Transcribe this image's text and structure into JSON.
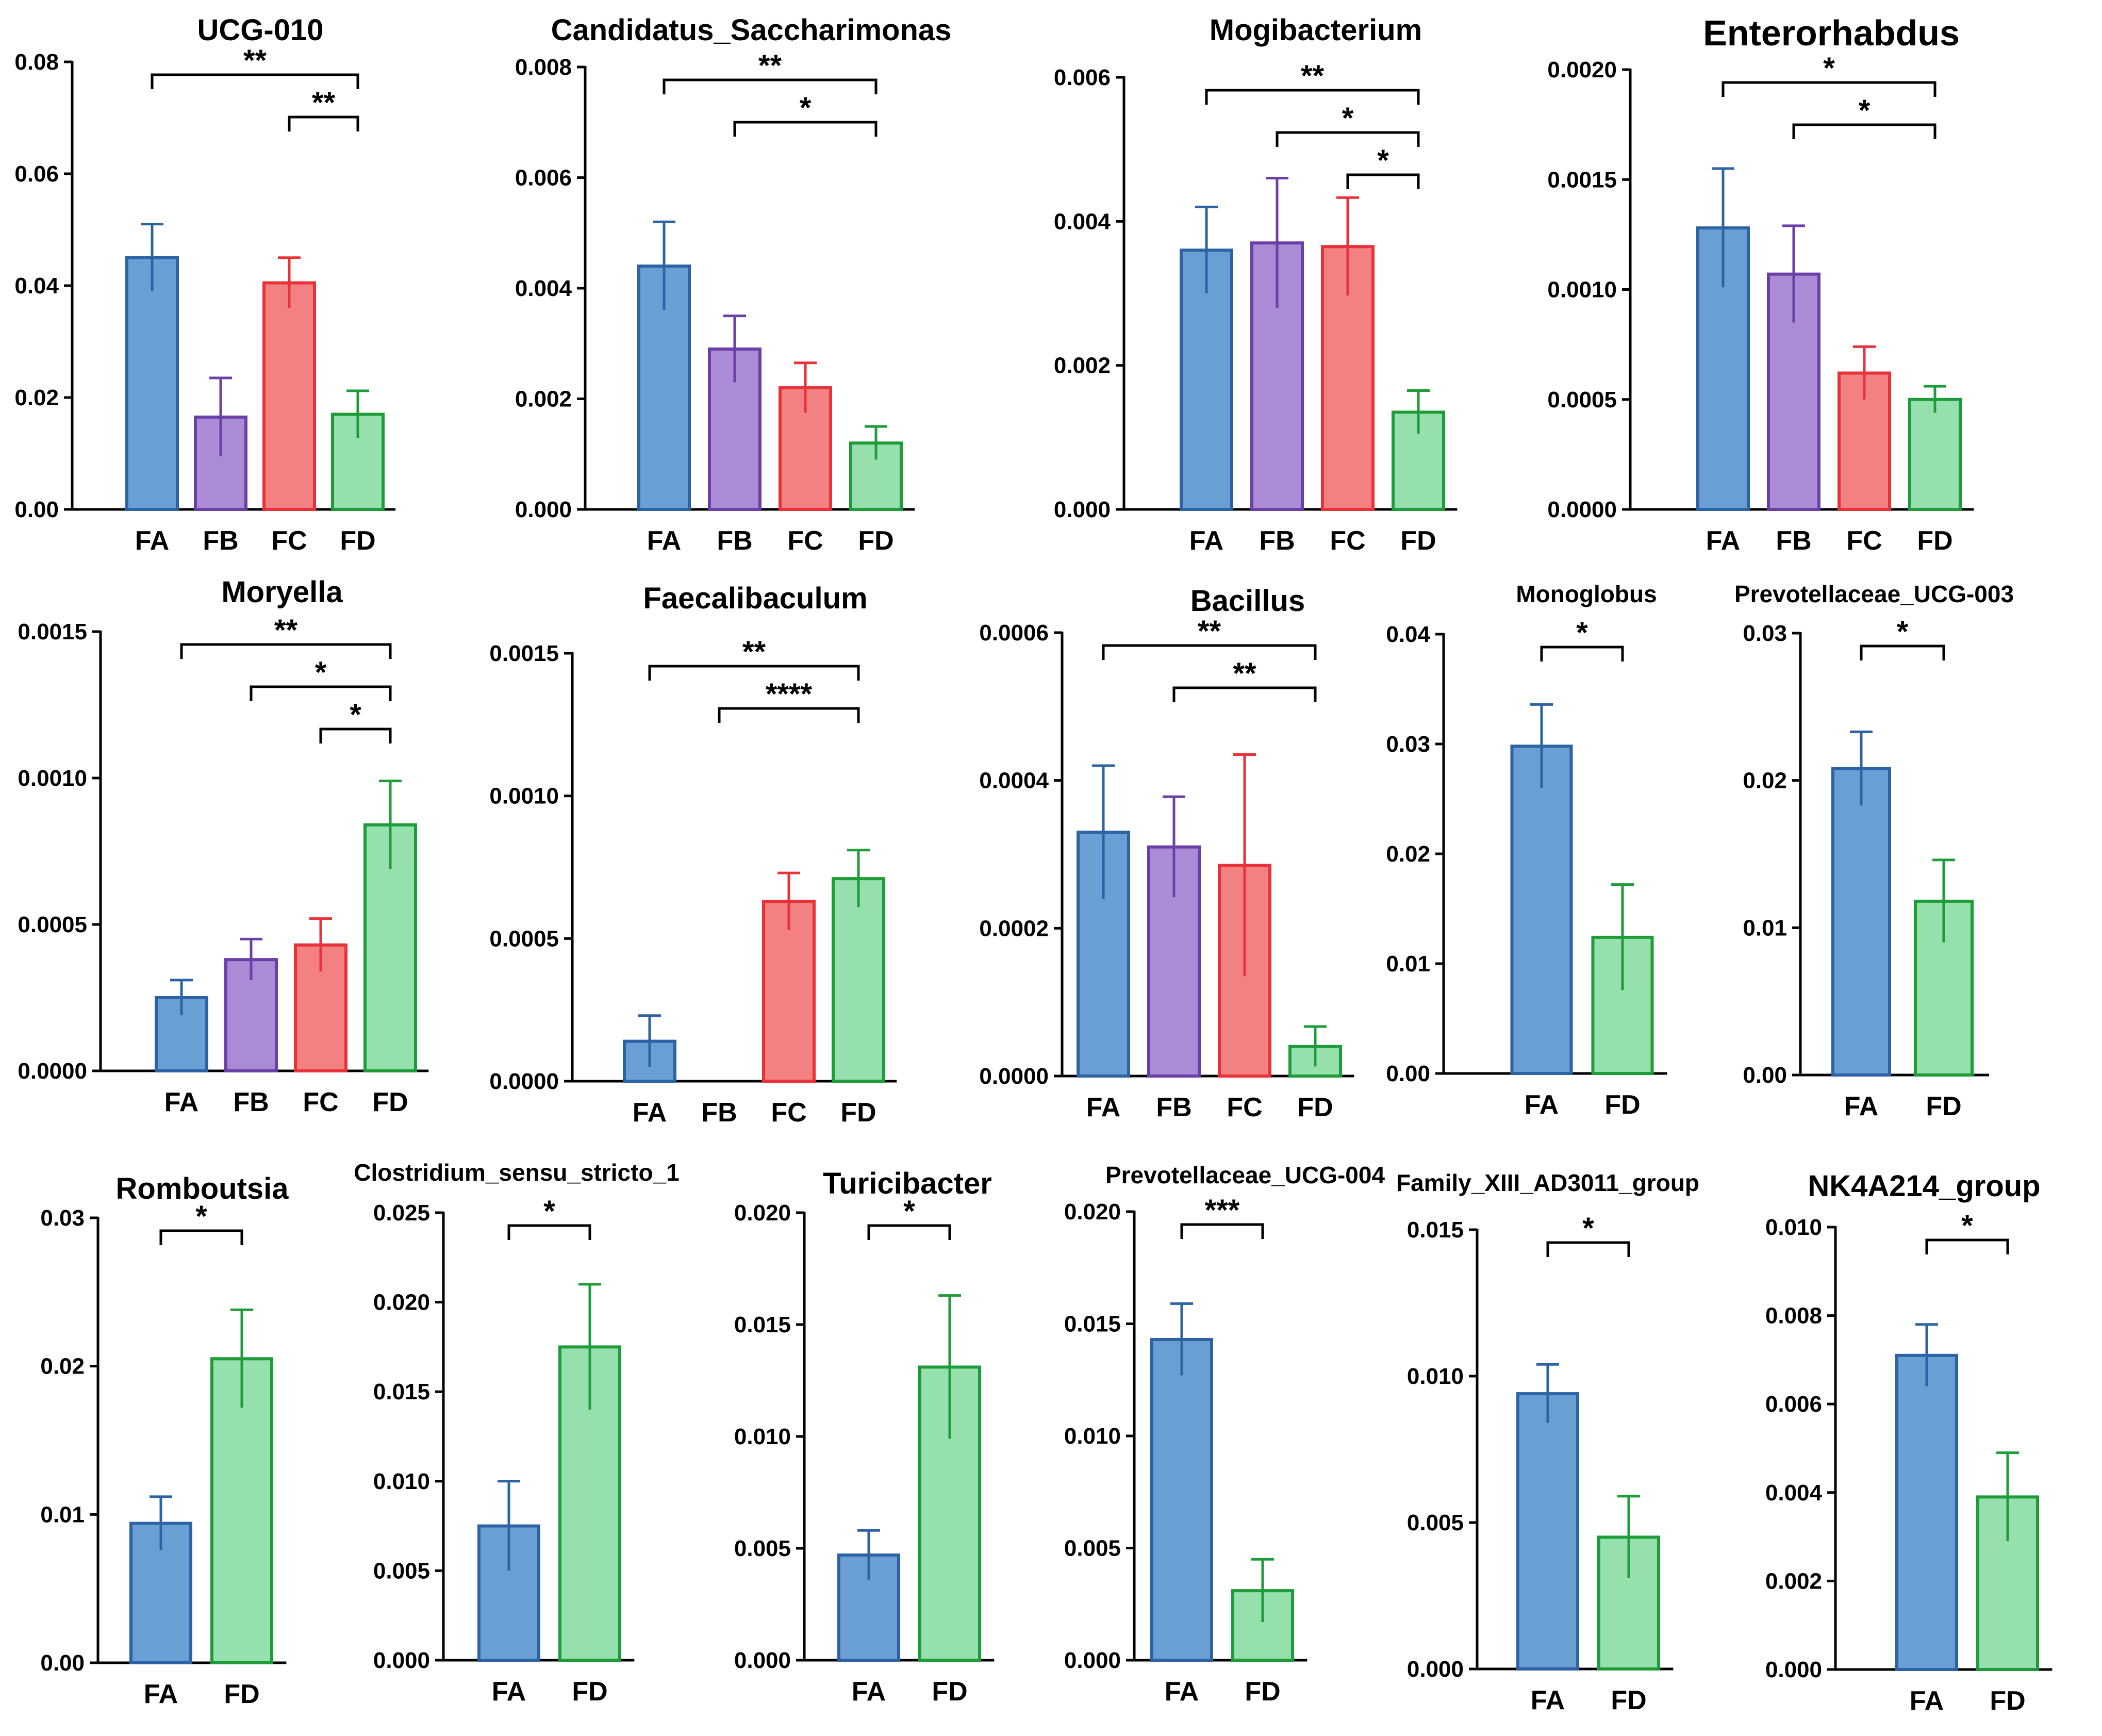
{
  "colors": {
    "FA": {
      "fill": "#6a9fd6",
      "stroke": "#2e63a3"
    },
    "FB": {
      "fill": "#a98bd6",
      "stroke": "#6a3fa6"
    },
    "FC": {
      "fill": "#f38181",
      "stroke": "#e8323a"
    },
    "FD": {
      "fill": "#95e0ad",
      "stroke": "#1f9c3a"
    }
  },
  "chart_data": [
    {
      "type": "bar",
      "title": "UCG-010",
      "categories": [
        "FA",
        "FB",
        "FC",
        "FD"
      ],
      "values": [
        0.045,
        0.0165,
        0.0405,
        0.017
      ],
      "errors": [
        0.006,
        0.007,
        0.0045,
        0.0042
      ],
      "ylim": [
        0,
        0.08
      ],
      "yticks": [
        "0.00",
        "0.02",
        "0.04",
        "0.06",
        "0.08"
      ],
      "significance": [
        {
          "from": "FA",
          "to": "FD",
          "label": "**"
        },
        {
          "from": "FC",
          "to": "FD",
          "label": "**"
        }
      ]
    },
    {
      "type": "bar",
      "title": "Candidatus_Saccharimonas",
      "categories": [
        "FA",
        "FB",
        "FC",
        "FD"
      ],
      "values": [
        0.0044,
        0.0029,
        0.0022,
        0.0012
      ],
      "errors": [
        0.0008,
        0.0006,
        0.00045,
        0.0003
      ],
      "ylim": [
        0,
        0.008
      ],
      "yticks": [
        "0.000",
        "0.002",
        "0.004",
        "0.006",
        "0.008"
      ],
      "significance": [
        {
          "from": "FA",
          "to": "FD",
          "label": "**"
        },
        {
          "from": "FB",
          "to": "FD",
          "label": "*"
        }
      ]
    },
    {
      "type": "bar",
      "title": "Mogibacterium",
      "categories": [
        "FA",
        "FB",
        "FC",
        "FD"
      ],
      "values": [
        0.0036,
        0.0037,
        0.00365,
        0.00135
      ],
      "errors": [
        0.0006,
        0.0009,
        0.00068,
        0.0003
      ],
      "ylim": [
        0,
        0.006
      ],
      "yticks": [
        "0.000",
        "0.002",
        "0.004",
        "0.006"
      ],
      "significance": [
        {
          "from": "FA",
          "to": "FD",
          "label": "**"
        },
        {
          "from": "FB",
          "to": "FD",
          "label": "*"
        },
        {
          "from": "FC",
          "to": "FD",
          "label": "*"
        }
      ]
    },
    {
      "type": "bar",
      "title": "Enterorhabdus",
      "categories": [
        "FA",
        "FB",
        "FC",
        "FD"
      ],
      "values": [
        0.00128,
        0.00107,
        0.00062,
        0.0005
      ],
      "errors": [
        0.00027,
        0.00022,
        0.00012,
        6e-05
      ],
      "ylim": [
        0,
        0.002
      ],
      "yticks": [
        "0.0000",
        "0.0005",
        "0.0010",
        "0.0015",
        "0.0020"
      ],
      "significance": [
        {
          "from": "FA",
          "to": "FD",
          "label": "*"
        },
        {
          "from": "FB",
          "to": "FD",
          "label": "*"
        }
      ]
    },
    {
      "type": "bar",
      "title": "Moryella",
      "categories": [
        "FA",
        "FB",
        "FC",
        "FD"
      ],
      "values": [
        0.00025,
        0.00038,
        0.00043,
        0.00084
      ],
      "errors": [
        6e-05,
        7e-05,
        9e-05,
        0.00015
      ],
      "ylim": [
        0,
        0.0015
      ],
      "yticks": [
        "0.0000",
        "0.0005",
        "0.0010",
        "0.0015"
      ],
      "significance": [
        {
          "from": "FA",
          "to": "FD",
          "label": "**"
        },
        {
          "from": "FB",
          "to": "FD",
          "label": "*"
        },
        {
          "from": "FC",
          "to": "FD",
          "label": "*"
        }
      ]
    },
    {
      "type": "bar",
      "title": "Faecalibaculum",
      "categories": [
        "FA",
        "FB",
        "FC",
        "FD"
      ],
      "values": [
        0.00014,
        0,
        0.00063,
        0.00071
      ],
      "errors": [
        9e-05,
        0,
        0.0001,
        0.0001
      ],
      "ylim": [
        0,
        0.0015
      ],
      "yticks": [
        "0.0000",
        "0.0005",
        "0.0010",
        "0.0015"
      ],
      "significance": [
        {
          "from": "FA",
          "to": "FD",
          "label": "**"
        },
        {
          "from": "FB",
          "to": "FD",
          "label": "****"
        }
      ]
    },
    {
      "type": "bar",
      "title": "Bacillus",
      "categories": [
        "FA",
        "FB",
        "FC",
        "FD"
      ],
      "values": [
        0.00033,
        0.00031,
        0.000285,
        4e-05
      ],
      "errors": [
        9e-05,
        6.8e-05,
        0.00015,
        2.7e-05
      ],
      "ylim": [
        0,
        0.0006
      ],
      "yticks": [
        "0.0000",
        "0.0002",
        "0.0004",
        "0.0006"
      ],
      "significance": [
        {
          "from": "FA",
          "to": "FD",
          "label": "**"
        },
        {
          "from": "FB",
          "to": "FD",
          "label": "**"
        }
      ]
    },
    {
      "type": "bar",
      "title": "Monoglobus",
      "categories": [
        "FA",
        "FD"
      ],
      "values": [
        0.0298,
        0.0124
      ],
      "errors": [
        0.0038,
        0.0048
      ],
      "ylim": [
        0,
        0.04
      ],
      "yticks": [
        "0.00",
        "0.01",
        "0.02",
        "0.03",
        "0.04"
      ],
      "significance": [
        {
          "from": "FA",
          "to": "FD",
          "label": "*"
        }
      ]
    },
    {
      "type": "bar",
      "title": "Prevotellaceae_UCG-003",
      "categories": [
        "FA",
        "FD"
      ],
      "values": [
        0.0208,
        0.0118
      ],
      "errors": [
        0.0025,
        0.0028
      ],
      "ylim": [
        0,
        0.03
      ],
      "yticks": [
        "0.00",
        "0.01",
        "0.02",
        "0.03"
      ],
      "significance": [
        {
          "from": "FA",
          "to": "FD",
          "label": "*"
        }
      ]
    },
    {
      "type": "bar",
      "title": "Romboutsia",
      "categories": [
        "FA",
        "FD"
      ],
      "values": [
        0.0094,
        0.0205
      ],
      "errors": [
        0.0018,
        0.0033
      ],
      "ylim": [
        0,
        0.03
      ],
      "yticks": [
        "0.00",
        "0.01",
        "0.02",
        "0.03"
      ],
      "significance": [
        {
          "from": "FA",
          "to": "FD",
          "label": "*"
        }
      ]
    },
    {
      "type": "bar",
      "title": "Clostridium_sensu_stricto_1",
      "categories": [
        "FA",
        "FD"
      ],
      "values": [
        0.0075,
        0.0175
      ],
      "errors": [
        0.0025,
        0.0035
      ],
      "ylim": [
        0,
        0.025
      ],
      "yticks": [
        "0.000",
        "0.005",
        "0.010",
        "0.015",
        "0.020",
        "0.025"
      ],
      "significance": [
        {
          "from": "FA",
          "to": "FD",
          "label": "*"
        }
      ]
    },
    {
      "type": "bar",
      "title": "Turicibacter",
      "categories": [
        "FA",
        "FD"
      ],
      "values": [
        0.0047,
        0.0131
      ],
      "errors": [
        0.0011,
        0.0032
      ],
      "ylim": [
        0,
        0.02
      ],
      "yticks": [
        "0.000",
        "0.005",
        "0.010",
        "0.015",
        "0.020"
      ],
      "significance": [
        {
          "from": "FA",
          "to": "FD",
          "label": "*"
        }
      ]
    },
    {
      "type": "bar",
      "title": "Prevotellaceae_UCG-004",
      "categories": [
        "FA",
        "FD"
      ],
      "values": [
        0.0143,
        0.0031
      ],
      "errors": [
        0.0016,
        0.0014
      ],
      "ylim": [
        0,
        0.02
      ],
      "yticks": [
        "0.000",
        "0.005",
        "0.010",
        "0.015",
        "0.020"
      ],
      "significance": [
        {
          "from": "FA",
          "to": "FD",
          "label": "***"
        }
      ]
    },
    {
      "type": "bar",
      "title": "Family_XIII_AD3011_group",
      "categories": [
        "FA",
        "FD"
      ],
      "values": [
        0.0094,
        0.0045
      ],
      "errors": [
        0.001,
        0.0014
      ],
      "ylim": [
        0,
        0.015
      ],
      "yticks": [
        "0.000",
        "0.005",
        "0.010",
        "0.015"
      ],
      "significance": [
        {
          "from": "FA",
          "to": "FD",
          "label": "*"
        }
      ]
    },
    {
      "type": "bar",
      "title": "NK4A214_group",
      "categories": [
        "FA",
        "FD"
      ],
      "values": [
        0.0071,
        0.0039
      ],
      "errors": [
        0.0007,
        0.001
      ],
      "ylim": [
        0,
        0.01
      ],
      "yticks": [
        "0.000",
        "0.002",
        "0.004",
        "0.006",
        "0.008",
        "0.010"
      ],
      "significance": [
        {
          "from": "FA",
          "to": "FD",
          "label": "*"
        }
      ]
    }
  ]
}
